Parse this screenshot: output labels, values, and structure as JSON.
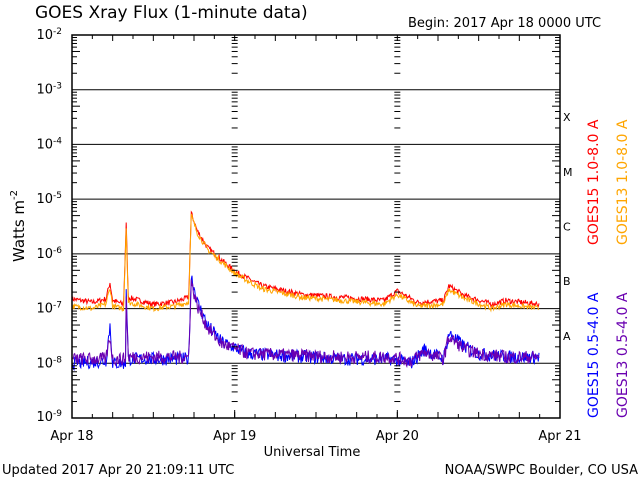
{
  "chart_data": {
    "type": "line",
    "title": "GOES Xray Flux (1-minute data)",
    "begin_label": "Begin:  2017 Apr 18 0000 UTC",
    "xlabel": "Universal Time",
    "ylabel": "Watts m",
    "ylabel_sup": "-2",
    "x_unit": "hours since 2017 Apr 18 0000 UTC",
    "xlim": [
      0,
      72
    ],
    "ylim": [
      1e-09,
      0.01
    ],
    "yscale": "log",
    "x_ticks": [
      {
        "v": 0,
        "label": "Apr 18"
      },
      {
        "v": 24,
        "label": "Apr 19"
      },
      {
        "v": 48,
        "label": "Apr 20"
      },
      {
        "v": 72,
        "label": "Apr 21"
      }
    ],
    "y_ticks": [
      {
        "e": -2,
        "label": "10",
        "sup": "-2"
      },
      {
        "e": -3,
        "label": "10",
        "sup": "-3"
      },
      {
        "e": -4,
        "label": "10",
        "sup": "-4"
      },
      {
        "e": -5,
        "label": "10",
        "sup": "-5"
      },
      {
        "e": -6,
        "label": "10",
        "sup": "-6"
      },
      {
        "e": -7,
        "label": "10",
        "sup": "-7"
      },
      {
        "e": -8,
        "label": "10",
        "sup": "-8"
      },
      {
        "e": -9,
        "label": "10",
        "sup": "-9"
      }
    ],
    "flare_classes": [
      {
        "e": -3.5,
        "label": "X"
      },
      {
        "e": -4.5,
        "label": "M"
      },
      {
        "e": -5.5,
        "label": "C"
      },
      {
        "e": -6.5,
        "label": "B"
      },
      {
        "e": -7.5,
        "label": "A"
      }
    ],
    "grid": "horizontal at decades",
    "legend_placement": "right, vertical",
    "series": [
      {
        "name": "GOES15 1.0-8.0 A",
        "color": "#ff0000",
        "points": [
          [
            0,
            1.5e-07
          ],
          [
            3,
            1.3e-07
          ],
          [
            5,
            1.5e-07
          ],
          [
            5.6,
            3e-07
          ],
          [
            6,
            1.4e-07
          ],
          [
            7.6,
            1.2e-07
          ],
          [
            8.0,
            3.5e-06
          ],
          [
            8.3,
            1.6e-07
          ],
          [
            12,
            1.2e-07
          ],
          [
            15,
            1.3e-07
          ],
          [
            17.2,
            1.6e-07
          ],
          [
            17.6,
            5.5e-06
          ],
          [
            18.5,
            2.6e-06
          ],
          [
            20,
            1.3e-06
          ],
          [
            24,
            4.8e-07
          ],
          [
            28,
            2.6e-07
          ],
          [
            34,
            1.8e-07
          ],
          [
            40,
            1.6e-07
          ],
          [
            46,
            1.4e-07
          ],
          [
            48,
            2.1e-07
          ],
          [
            51,
            1.3e-07
          ],
          [
            54.8,
            1.4e-07
          ],
          [
            55.6,
            2.6e-07
          ],
          [
            58,
            1.7e-07
          ],
          [
            62,
            1.2e-07
          ],
          [
            64,
            1.4e-07
          ],
          [
            69,
            1.2e-07
          ]
        ]
      },
      {
        "name": "GOES13 1.0-8.0 A",
        "color": "#ffa500",
        "points": [
          [
            0,
            1.1e-07
          ],
          [
            3,
            1e-07
          ],
          [
            5,
            1.2e-07
          ],
          [
            5.6,
            2.4e-07
          ],
          [
            6,
            1.1e-07
          ],
          [
            7.6,
            1e-07
          ],
          [
            8.0,
            3e-06
          ],
          [
            8.3,
            1.3e-07
          ],
          [
            12,
            1e-07
          ],
          [
            15,
            1.1e-07
          ],
          [
            17.2,
            1.3e-07
          ],
          [
            17.6,
            5e-06
          ],
          [
            18.5,
            2.4e-06
          ],
          [
            20,
            1.2e-06
          ],
          [
            24,
            4.4e-07
          ],
          [
            28,
            2.3e-07
          ],
          [
            34,
            1.6e-07
          ],
          [
            40,
            1.4e-07
          ],
          [
            46,
            1.2e-07
          ],
          [
            48,
            1.8e-07
          ],
          [
            51,
            1.1e-07
          ],
          [
            54.8,
            1.2e-07
          ],
          [
            55.6,
            2.2e-07
          ],
          [
            58,
            1.5e-07
          ],
          [
            62,
            1e-07
          ],
          [
            64,
            1.2e-07
          ],
          [
            69,
            1e-07
          ]
        ]
      },
      {
        "name": "GOES15 0.5-4.0 A",
        "color": "#0000ff",
        "points": [
          [
            0,
            1e-08
          ],
          [
            5,
            1.1e-08
          ],
          [
            5.6,
            5e-08
          ],
          [
            6,
            1e-08
          ],
          [
            7.9,
            1e-08
          ],
          [
            8.0,
            2.5e-07
          ],
          [
            8.3,
            1.2e-08
          ],
          [
            17.2,
            1.2e-08
          ],
          [
            17.6,
            4e-07
          ],
          [
            18.5,
            1.3e-07
          ],
          [
            20,
            5e-08
          ],
          [
            22,
            2.5e-08
          ],
          [
            26,
            1.5e-08
          ],
          [
            40,
            1.2e-08
          ],
          [
            47,
            1.2e-08
          ],
          [
            50,
            1e-08
          ],
          [
            52,
            1.8e-08
          ],
          [
            54.8,
            1.2e-08
          ],
          [
            55.6,
            3.5e-08
          ],
          [
            58,
            2e-08
          ],
          [
            60,
            1.5e-08
          ],
          [
            64,
            1.3e-08
          ],
          [
            69,
            1.3e-08
          ]
        ]
      },
      {
        "name": "GOES13 0.5-4.0 A",
        "color": "#6a00b0",
        "points": [
          [
            0,
            1.2e-08
          ],
          [
            5,
            1.2e-08
          ],
          [
            5.6,
            3e-08
          ],
          [
            6,
            1.2e-08
          ],
          [
            7.9,
            1.2e-08
          ],
          [
            8.0,
            1.5e-07
          ],
          [
            8.3,
            1.3e-08
          ],
          [
            17.2,
            1.3e-08
          ],
          [
            17.6,
            3e-07
          ],
          [
            18.5,
            1.1e-07
          ],
          [
            20,
            4.5e-08
          ],
          [
            22,
            2.3e-08
          ],
          [
            26,
            1.5e-08
          ],
          [
            40,
            1.3e-08
          ],
          [
            47,
            1.3e-08
          ],
          [
            50,
            1.1e-08
          ],
          [
            52,
            1.6e-08
          ],
          [
            54.8,
            1.2e-08
          ],
          [
            55.6,
            3e-08
          ],
          [
            58,
            1.8e-08
          ],
          [
            60,
            1.5e-08
          ],
          [
            64,
            1.3e-08
          ],
          [
            69,
            1.3e-08
          ]
        ]
      }
    ]
  },
  "footer": {
    "updated": "Updated 2017 Apr 20 21:09:11 UTC",
    "credit": "NOAA/SWPC Boulder, CO USA"
  }
}
